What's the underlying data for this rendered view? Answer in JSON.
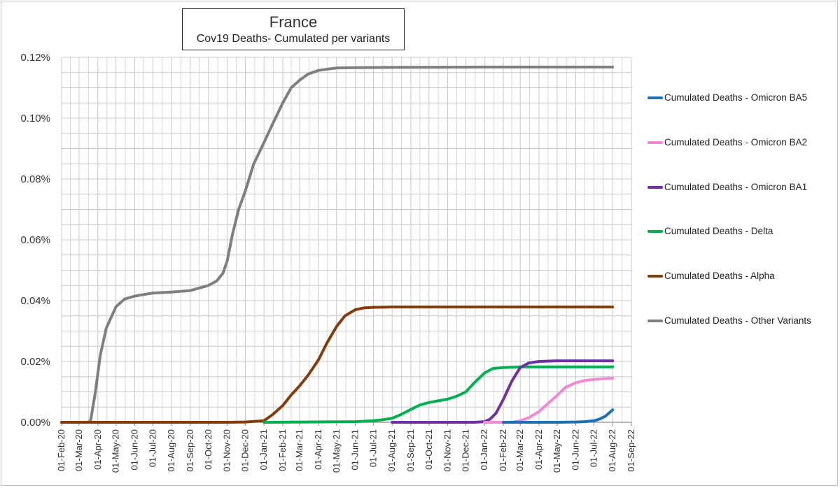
{
  "chart_data": {
    "type": "line",
    "title": "France",
    "subtitle": "Cov19 Deaths- Cumulated per variants",
    "xlabel": "",
    "ylabel": "",
    "x_ticks": [
      "01-Feb-20",
      "01-Mar-20",
      "01-Apr-20",
      "01-May-20",
      "01-Jun-20",
      "01-Jul-20",
      "01-Aug-20",
      "01-Sep-20",
      "01-Oct-20",
      "01-Nov-20",
      "01-Dec-20",
      "01-Jan-21",
      "01-Feb-21",
      "01-Mar-21",
      "01-Apr-21",
      "01-May-21",
      "01-Jun-21",
      "01-Jul-21",
      "01-Aug-21",
      "01-Sep-21",
      "01-Oct-21",
      "01-Nov-21",
      "01-Dec-21",
      "01-Jan-22",
      "01-Feb-22",
      "01-Mar-22",
      "01-Apr-22",
      "01-May-22",
      "01-Jun-22",
      "01-Jul-22",
      "01-Aug-22",
      "01-Sep-22"
    ],
    "y_ticks": [
      "0.00%",
      "0.02%",
      "0.04%",
      "0.06%",
      "0.08%",
      "0.10%",
      "0.12%"
    ],
    "ylim": [
      0,
      0.12
    ],
    "y_unit": "%",
    "grid": true,
    "legend_position": "right",
    "series": [
      {
        "name": "Cumulated Deaths - Omicron BA5",
        "color": "#1f6fb5",
        "x": [
          "2022-02-01",
          "2022-05-01",
          "2022-06-01",
          "2022-06-15",
          "2022-07-01",
          "2022-07-10",
          "2022-07-20",
          "2022-08-01"
        ],
        "y": [
          0,
          0,
          0.0001,
          0.0002,
          0.0005,
          0.001,
          0.002,
          0.0041
        ]
      },
      {
        "name": "Cumulated Deaths - Omicron BA2",
        "color": "#f08bd3",
        "x": [
          "2022-01-01",
          "2022-02-15",
          "2022-03-01",
          "2022-03-15",
          "2022-04-01",
          "2022-04-15",
          "2022-05-01",
          "2022-05-15",
          "2022-06-01",
          "2022-06-15",
          "2022-07-01",
          "2022-08-01"
        ],
        "y": [
          0,
          0,
          0.0005,
          0.0015,
          0.0035,
          0.006,
          0.0088,
          0.0115,
          0.013,
          0.0137,
          0.0141,
          0.0145
        ]
      },
      {
        "name": "Cumulated Deaths - Omicron BA1",
        "color": "#7030a0",
        "x": [
          "2021-08-01",
          "2021-12-15",
          "2022-01-01",
          "2022-01-10",
          "2022-01-20",
          "2022-02-01",
          "2022-02-15",
          "2022-03-01",
          "2022-03-15",
          "2022-04-01",
          "2022-05-01",
          "2022-08-01"
        ],
        "y": [
          0,
          0,
          0.0002,
          0.001,
          0.003,
          0.0075,
          0.0135,
          0.018,
          0.0195,
          0.02,
          0.0202,
          0.0202
        ]
      },
      {
        "name": "Cumulated Deaths - Delta",
        "color": "#00b050",
        "x": [
          "2021-01-01",
          "2021-06-01",
          "2021-07-01",
          "2021-07-15",
          "2021-08-01",
          "2021-08-15",
          "2021-09-01",
          "2021-09-15",
          "2021-10-01",
          "2021-10-15",
          "2021-11-01",
          "2021-11-15",
          "2021-12-01",
          "2021-12-15",
          "2022-01-01",
          "2022-01-15",
          "2022-02-01",
          "2022-03-01",
          "2022-08-01"
        ],
        "y": [
          0,
          0.0002,
          0.0005,
          0.0008,
          0.0013,
          0.0025,
          0.0042,
          0.0056,
          0.0065,
          0.007,
          0.0076,
          0.0085,
          0.01,
          0.013,
          0.0162,
          0.0177,
          0.018,
          0.0182,
          0.0182
        ]
      },
      {
        "name": "Cumulated Deaths - Alpha",
        "color": "#843c0c",
        "x": [
          "2020-02-01",
          "2020-11-01",
          "2020-12-01",
          "2021-01-01",
          "2021-01-15",
          "2021-02-01",
          "2021-02-15",
          "2021-03-01",
          "2021-03-15",
          "2021-04-01",
          "2021-04-15",
          "2021-05-01",
          "2021-05-15",
          "2021-06-01",
          "2021-06-15",
          "2021-07-01",
          "2021-08-01",
          "2022-08-01"
        ],
        "y": [
          0,
          0,
          0.0001,
          0.0005,
          0.0025,
          0.0055,
          0.009,
          0.012,
          0.0155,
          0.0205,
          0.026,
          0.0315,
          0.035,
          0.037,
          0.0376,
          0.0378,
          0.0379,
          0.0379
        ]
      },
      {
        "name": "Cumulated Deaths - Other Variants",
        "color": "#7f7f7f",
        "x": [
          "2020-02-01",
          "2020-03-15",
          "2020-03-20",
          "2020-03-28",
          "2020-04-05",
          "2020-04-15",
          "2020-05-01",
          "2020-05-15",
          "2020-06-01",
          "2020-07-01",
          "2020-08-01",
          "2020-09-01",
          "2020-10-01",
          "2020-10-15",
          "2020-10-25",
          "2020-11-01",
          "2020-11-10",
          "2020-11-20",
          "2020-12-01",
          "2020-12-15",
          "2021-01-01",
          "2021-01-15",
          "2021-02-01",
          "2021-02-15",
          "2021-03-01",
          "2021-03-15",
          "2021-04-01",
          "2021-05-01",
          "2021-06-01",
          "2021-08-01",
          "2022-01-01",
          "2022-08-01"
        ],
        "y": [
          0,
          0,
          0.0005,
          0.01,
          0.022,
          0.031,
          0.038,
          0.0405,
          0.0415,
          0.0425,
          0.0428,
          0.0433,
          0.045,
          0.0465,
          0.049,
          0.053,
          0.062,
          0.07,
          0.076,
          0.085,
          0.092,
          0.098,
          0.105,
          0.11,
          0.1125,
          0.1145,
          0.1157,
          0.1165,
          0.1166,
          0.1167,
          0.1168,
          0.1168
        ]
      }
    ]
  }
}
